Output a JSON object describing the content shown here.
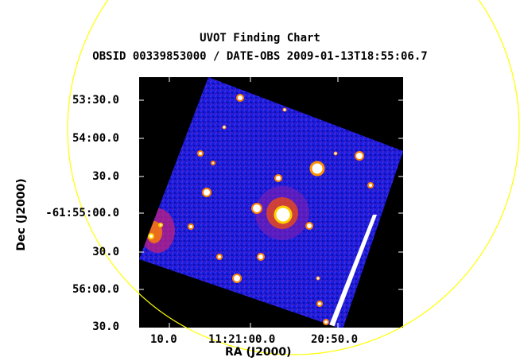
{
  "title": "UVOT Finding Chart",
  "subtitle": "OBSID 00339853000 / DATE-OBS 2009-01-13T18:55:06.7",
  "axes": {
    "x_label": "RA (J2000)",
    "y_label": "Dec (J2000)",
    "x_ticks": [
      "10.0",
      "11:21:00.0",
      "20:50.0"
    ],
    "y_ticks": [
      "53:30.0",
      "54:00.0",
      "30.0",
      "-61:55:00.0",
      "30.0",
      "56:00.0",
      "30.0"
    ]
  },
  "colors": {
    "background": "#000000",
    "sky": "#1a1ad6",
    "circle": "#ffff00",
    "source": "#ffffff"
  }
}
